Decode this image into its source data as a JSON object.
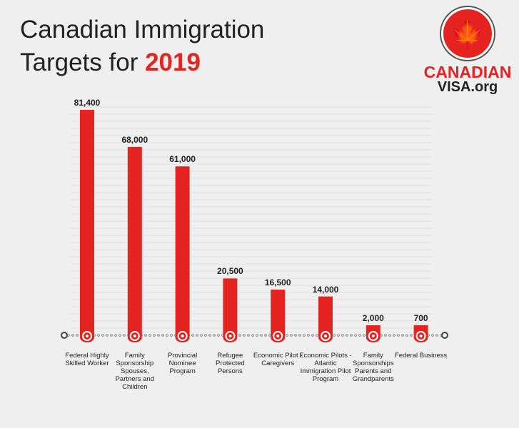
{
  "chart_data": {
    "type": "bar",
    "title_line1": "Canadian Immigration",
    "title_line2_prefix": "Targets for",
    "title_year": "2019",
    "categories": [
      "Federal Highly Skilled Worker",
      "Family Sponsorship Spouses, Partners and Children",
      "Provincial Nominee Program",
      "Refugee Protected Persons",
      "Economic Pilot - Caregivers",
      "Economic Pilots -Atlantic Immigration Pilot Program",
      "Family Sponsorships Parents and Grandparents",
      "Federal Business"
    ],
    "values": [
      81400,
      68000,
      61000,
      20500,
      16500,
      14000,
      2000,
      700
    ],
    "data_labels": [
      "81,400",
      "68,000",
      "61,000",
      "20,500",
      "16,500",
      "14,000",
      "2,000",
      "700"
    ],
    "bar_color": "#e52421",
    "grid": true
  },
  "logo": {
    "line1": "CANADIAN",
    "line2": "VISA.org",
    "icon": "maple-leaf-icon"
  }
}
